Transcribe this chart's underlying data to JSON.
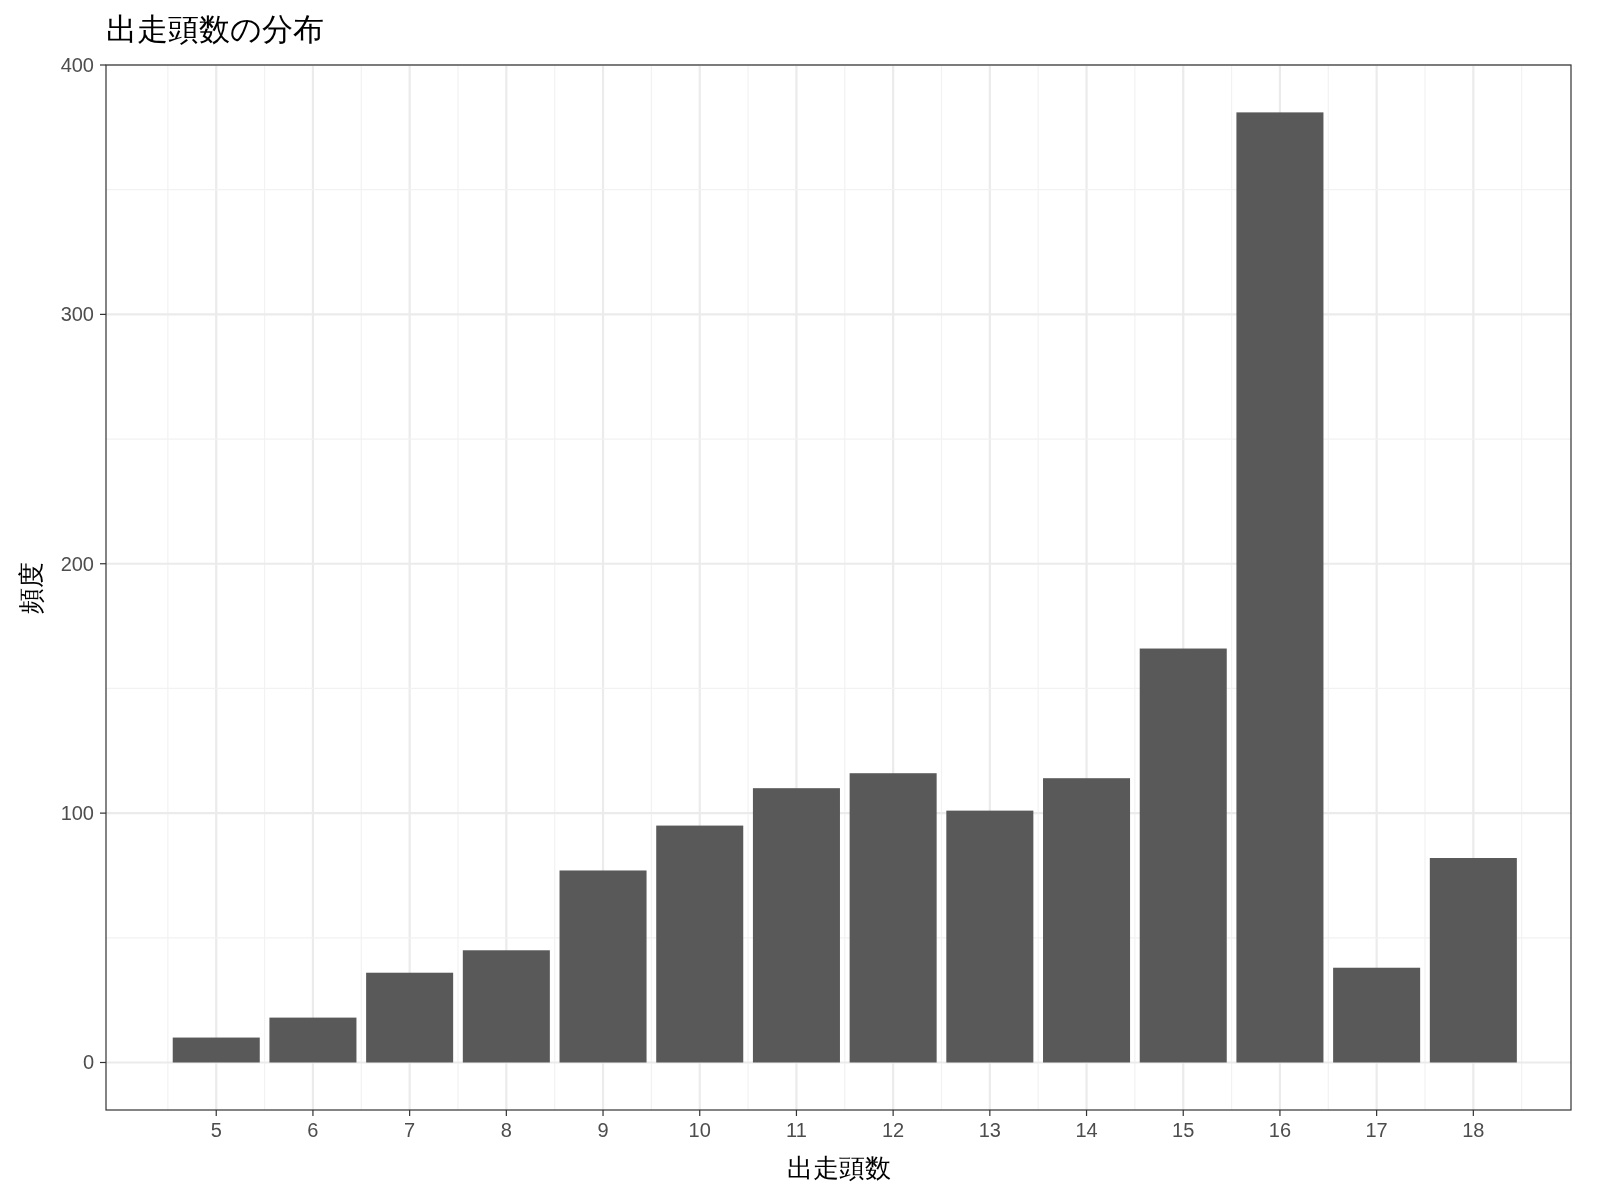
{
  "chart_data": {
    "type": "bar",
    "title": "出走頭数の分布",
    "xlabel": "出走頭数",
    "ylabel": "頻度",
    "x": [
      5,
      6,
      7,
      8,
      9,
      10,
      11,
      12,
      13,
      14,
      15,
      16,
      17,
      18
    ],
    "values": [
      10,
      18,
      36,
      45,
      77,
      95,
      110,
      116,
      101,
      114,
      166,
      381,
      38,
      82
    ],
    "color": "#595959",
    "xlim": [
      3.86,
      19.01
    ],
    "ylim": [
      -19.05,
      400
    ],
    "xticks": [
      5,
      6,
      7,
      8,
      9,
      10,
      11,
      12,
      13,
      14,
      15,
      16,
      17,
      18
    ],
    "yticks": [
      0,
      100,
      200,
      300,
      400
    ],
    "grid": true
  }
}
